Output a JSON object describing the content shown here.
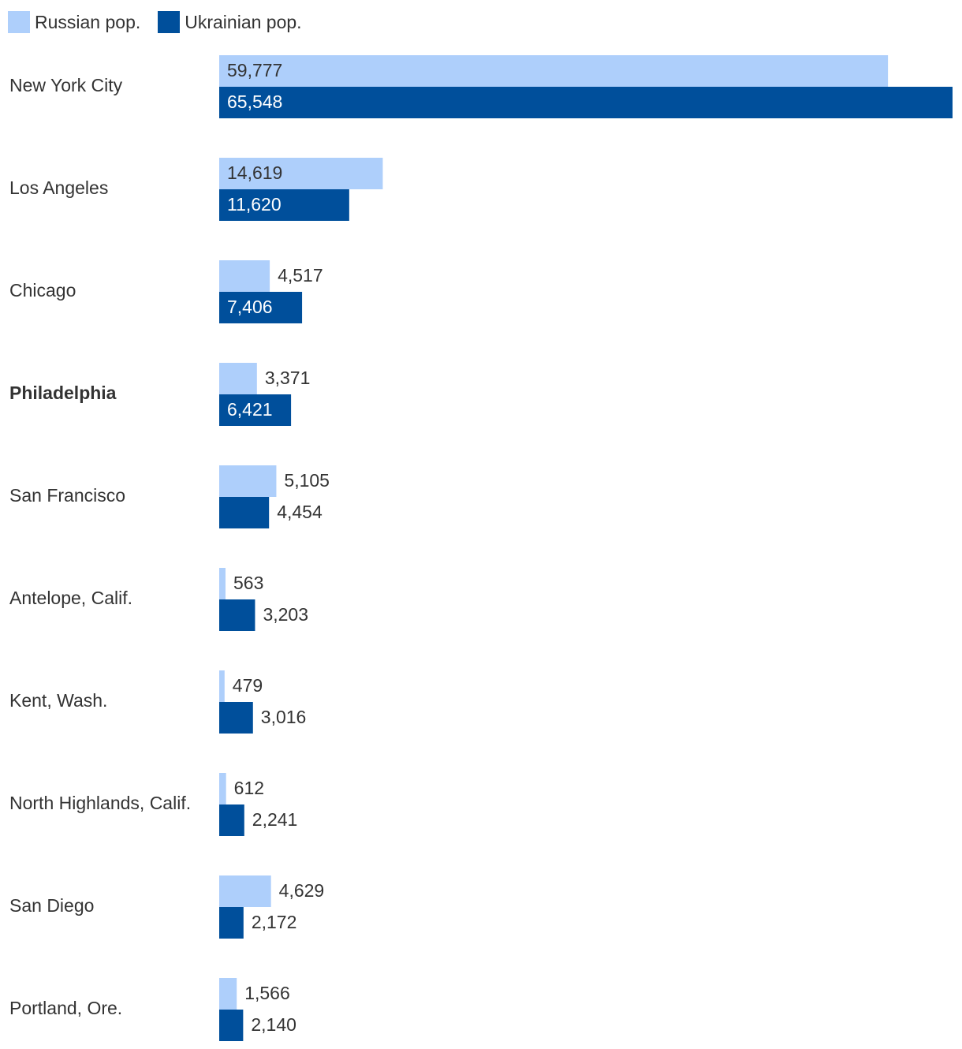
{
  "legend": {
    "russian_label": "Russian pop.",
    "ukrainian_label": "Ukrainian pop."
  },
  "colors": {
    "russian": "#aecffb",
    "ukrainian": "#004f9b",
    "label_dark": "#333333",
    "label_light": "#ffffff"
  },
  "chart_data": {
    "type": "bar",
    "orientation": "horizontal",
    "categories": [
      "New York City",
      "Los Angeles",
      "Chicago",
      "Philadelphia",
      "San Francisco",
      "Antelope, Calif.",
      "Kent, Wash.",
      "North Highlands, Calif.",
      "San Diego",
      "Portland, Ore."
    ],
    "highlighted_category": "Philadelphia",
    "series": [
      {
        "name": "Russian pop.",
        "values": [
          59777,
          14619,
          4517,
          3371,
          5105,
          563,
          479,
          612,
          4629,
          1566
        ],
        "value_labels": [
          "59,777",
          "14,619",
          "4,517",
          "3,371",
          "5,105",
          "563",
          "479",
          "612",
          "4,629",
          "1,566"
        ]
      },
      {
        "name": "Ukrainian pop.",
        "values": [
          65548,
          11620,
          7406,
          6421,
          4454,
          3203,
          3016,
          2241,
          2172,
          2140
        ],
        "value_labels": [
          "65,548",
          "11,620",
          "7,406",
          "6,421",
          "4,454",
          "3,203",
          "3,016",
          "2,241",
          "2,172",
          "2,140"
        ]
      }
    ],
    "xlim": [
      0,
      65548
    ],
    "legend_position": "top-left",
    "grid": false
  }
}
